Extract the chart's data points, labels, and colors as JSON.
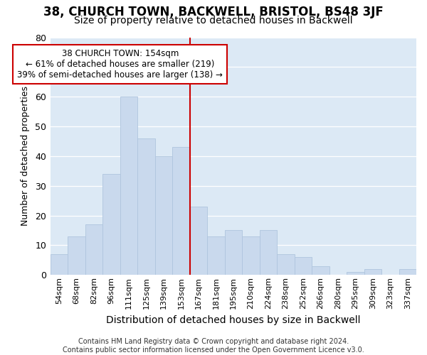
{
  "title": "38, CHURCH TOWN, BACKWELL, BRISTOL, BS48 3JF",
  "subtitle": "Size of property relative to detached houses in Backwell",
  "xlabel": "Distribution of detached houses by size in Backwell",
  "ylabel": "Number of detached properties",
  "footer_line1": "Contains HM Land Registry data © Crown copyright and database right 2024.",
  "footer_line2": "Contains public sector information licensed under the Open Government Licence v3.0.",
  "bar_labels": [
    "54sqm",
    "68sqm",
    "82sqm",
    "96sqm",
    "111sqm",
    "125sqm",
    "139sqm",
    "153sqm",
    "167sqm",
    "181sqm",
    "195sqm",
    "210sqm",
    "224sqm",
    "238sqm",
    "252sqm",
    "266sqm",
    "280sqm",
    "295sqm",
    "309sqm",
    "323sqm",
    "337sqm"
  ],
  "bar_values": [
    7,
    13,
    17,
    34,
    60,
    46,
    40,
    43,
    23,
    13,
    15,
    13,
    15,
    7,
    6,
    3,
    0,
    1,
    2,
    0,
    2
  ],
  "bar_color": "#c9d9ed",
  "bar_edge_color": "#afc5de",
  "vline_x_index": 7,
  "vline_color": "#cc0000",
  "annotation_line1": "38 CHURCH TOWN: 154sqm",
  "annotation_line2": "← 61% of detached houses are smaller (219)",
  "annotation_line3": "39% of semi-detached houses are larger (138) →",
  "ylim": [
    0,
    80
  ],
  "yticks": [
    0,
    10,
    20,
    30,
    40,
    50,
    60,
    70,
    80
  ],
  "bg_color": "#dce9f5",
  "fig_bg_color": "#ffffff",
  "grid_color": "#ffffff",
  "title_fontsize": 12,
  "subtitle_fontsize": 10,
  "ylabel_fontsize": 9,
  "xlabel_fontsize": 10,
  "footer_fontsize": 7
}
